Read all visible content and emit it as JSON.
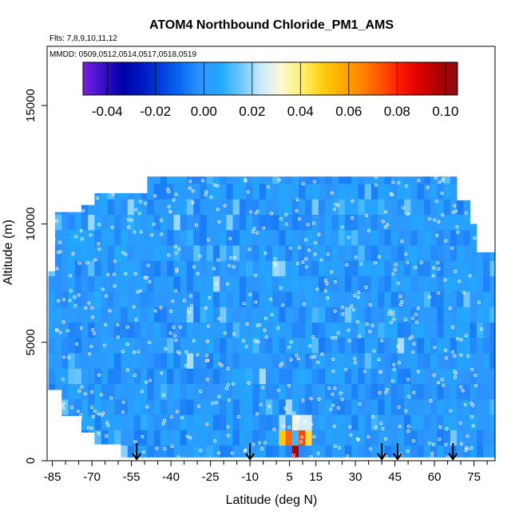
{
  "chart_data": {
    "type": "heatmap",
    "title": "ATOM4 Northbound Chloride_PM1_AMS",
    "flights_label": "Flts: 7,8,9,10,11,12",
    "dates_label": "MMDD: 0509,0512,0514,0517,0518,0519",
    "xlabel": "Latitude (deg N)",
    "ylabel": "Altitude (m)",
    "xlim": [
      -87,
      83
    ],
    "ylim": [
      0,
      17500
    ],
    "x_ticks": [
      -85,
      -70,
      -55,
      -40,
      -25,
      -10,
      5,
      15,
      30,
      45,
      60,
      75
    ],
    "x_minor_ticks": [
      -80,
      -75,
      -65,
      -60,
      -50,
      -45,
      -35,
      -30,
      -20,
      -15,
      -5,
      0,
      10,
      20,
      25,
      35,
      40,
      50,
      55,
      65,
      70,
      80
    ],
    "y_ticks": [
      0,
      5000,
      10000,
      15000
    ],
    "colorbar": {
      "min": -0.05,
      "max": 0.105,
      "ticks": [
        -0.04,
        -0.02,
        0.0,
        0.02,
        0.04,
        0.06,
        0.08,
        0.1
      ],
      "tick_labels": [
        "-0.04",
        "-0.02",
        "0.00",
        "0.02",
        "0.04",
        "0.06",
        "0.08",
        "0.10"
      ],
      "colors": [
        "#7a1fe0",
        "#3a10c8",
        "#0000a8",
        "#0018c0",
        "#0040e0",
        "#0b6cf2",
        "#2e96ff",
        "#22a9ff",
        "#6cc6ff",
        "#c8eaff",
        "#fbf9d8",
        "#fff27a",
        "#ffd21a",
        "#ffb000",
        "#ff8a00",
        "#ff5a00",
        "#ff1e00",
        "#e00000",
        "#b00000",
        "#8c0d12"
      ]
    },
    "grid": false,
    "field_background_value": 0.0,
    "anomalies": [
      {
        "lat": 7,
        "alt_range": [
          0,
          700
        ],
        "value": 0.1
      },
      {
        "lat": 5,
        "alt_range": [
          700,
          1300
        ],
        "value": 0.07
      },
      {
        "lat": 10,
        "alt_range": [
          700,
          1300
        ],
        "value": 0.075
      },
      {
        "lat": 2,
        "alt_range": [
          700,
          1300
        ],
        "value": 0.05
      },
      {
        "lat": 13,
        "alt_range": [
          700,
          1300
        ],
        "value": 0.045
      },
      {
        "lat": 7,
        "alt_range": [
          1300,
          2000
        ],
        "value": 0.03
      },
      {
        "lat": 3,
        "alt_range": [
          1300,
          2000
        ],
        "value": 0.02
      },
      {
        "lat": 11,
        "alt_range": [
          1300,
          2000
        ],
        "value": 0.025
      },
      {
        "lat": 5,
        "alt_range": [
          2000,
          2600
        ],
        "value": 0.02
      }
    ],
    "arrows_lat": [
      -53,
      -10,
      40,
      46,
      67
    ]
  }
}
